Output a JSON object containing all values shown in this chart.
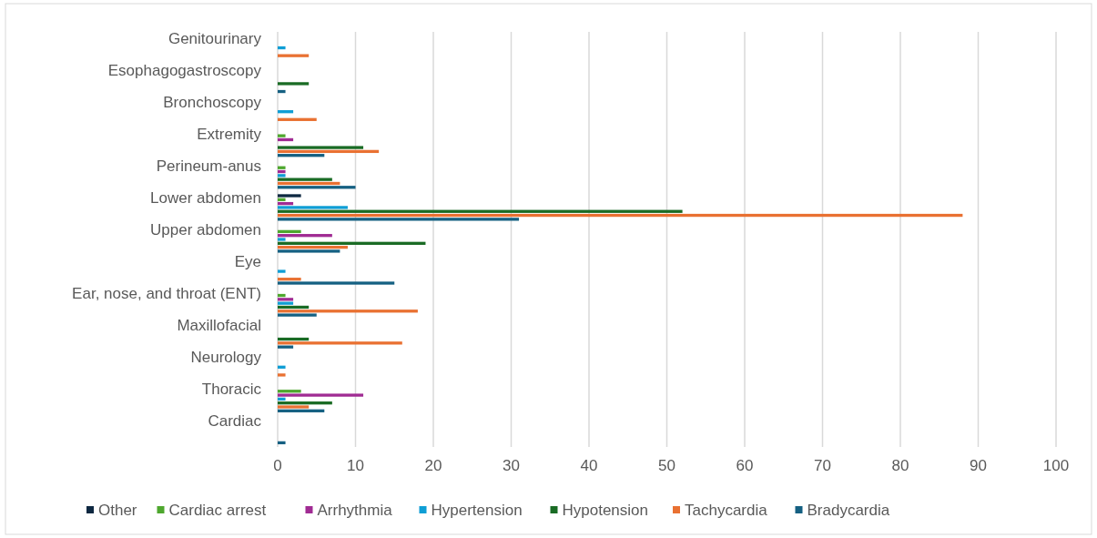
{
  "chart_data": {
    "type": "bar",
    "orientation": "horizontal",
    "categories": [
      "Genitourinary",
      "Esophagogastroscopy",
      "Bronchoscopy",
      "Extremity",
      "Perineum-anus",
      "Lower abdomen",
      "Upper abdomen",
      "Eye",
      "Ear, nose, and throat (ENT)",
      "Maxillofacial",
      "Neurology",
      "Thoracic",
      "Cardiac"
    ],
    "series": [
      {
        "name": "Bradycardia",
        "color": "#156082",
        "values": [
          0,
          1,
          0,
          6,
          10,
          31,
          8,
          15,
          5,
          2,
          0,
          6,
          1
        ]
      },
      {
        "name": "Tachycardia",
        "color": "#e97132",
        "values": [
          4,
          0,
          5,
          13,
          8,
          88,
          9,
          3,
          18,
          16,
          1,
          4,
          0
        ]
      },
      {
        "name": "Hypotension",
        "color": "#196b24",
        "values": [
          0,
          4,
          0,
          11,
          7,
          52,
          19,
          0,
          4,
          4,
          0,
          7,
          0
        ]
      },
      {
        "name": "Hypertension",
        "color": "#0f9ed5",
        "values": [
          1,
          0,
          2,
          0,
          1,
          9,
          1,
          1,
          2,
          0,
          1,
          1,
          0
        ]
      },
      {
        "name": "Arrhythmia",
        "color": "#a02b93",
        "values": [
          0,
          0,
          0,
          2,
          1,
          2,
          7,
          0,
          2,
          0,
          0,
          11,
          0
        ]
      },
      {
        "name": "Cardiac arrest",
        "color": "#4ea72e",
        "values": [
          0,
          0,
          0,
          1,
          1,
          1,
          3,
          0,
          1,
          0,
          0,
          3,
          0
        ]
      },
      {
        "name": "Other",
        "color": "#0e2841",
        "values": [
          0,
          0,
          0,
          0,
          0,
          3,
          0,
          0,
          0,
          0,
          0,
          0,
          0
        ]
      }
    ],
    "xlim": [
      0,
      100
    ],
    "xticks": [
      0,
      10,
      20,
      30,
      40,
      50,
      60,
      70,
      80,
      90,
      100
    ],
    "grid": "x",
    "legend": "bottom"
  }
}
